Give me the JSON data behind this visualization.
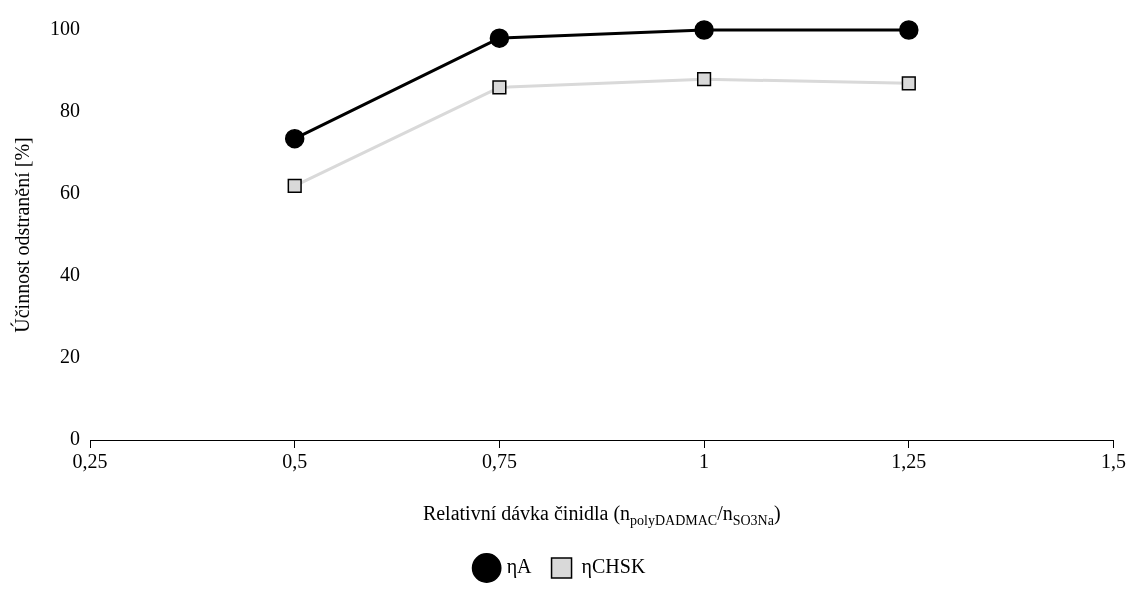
{
  "chart_data": {
    "type": "line",
    "xlabel": "Relativní dávka činidla (n$_{polyDADMAC}$/n$_{SO3Na}$)",
    "ylabel": "Účinnost odstranění [%]",
    "x": [
      0.5,
      0.75,
      1,
      1.25
    ],
    "series": [
      {
        "name": "ηA",
        "color": "#000000",
        "marker": "circle",
        "values": [
          73.5,
          98,
          100,
          100
        ]
      },
      {
        "name": "ηCHSK",
        "color": "#d9d9d9",
        "marker": "square",
        "values": [
          62,
          86,
          88,
          87
        ]
      }
    ],
    "xlim": [
      0.25,
      1.5
    ],
    "xticks": [
      {
        "value": 0.25,
        "label": "0,25"
      },
      {
        "value": 0.5,
        "label": "0,5"
      },
      {
        "value": 0.75,
        "label": "0,75"
      },
      1,
      {
        "value": 1.25,
        "label": "1,25"
      },
      {
        "value": 1.5,
        "label": "1,5"
      }
    ],
    "ylim": [
      0,
      100
    ],
    "yticks": [
      0,
      20,
      40,
      60,
      80,
      100
    ],
    "grid": false,
    "legend": "bottom"
  }
}
